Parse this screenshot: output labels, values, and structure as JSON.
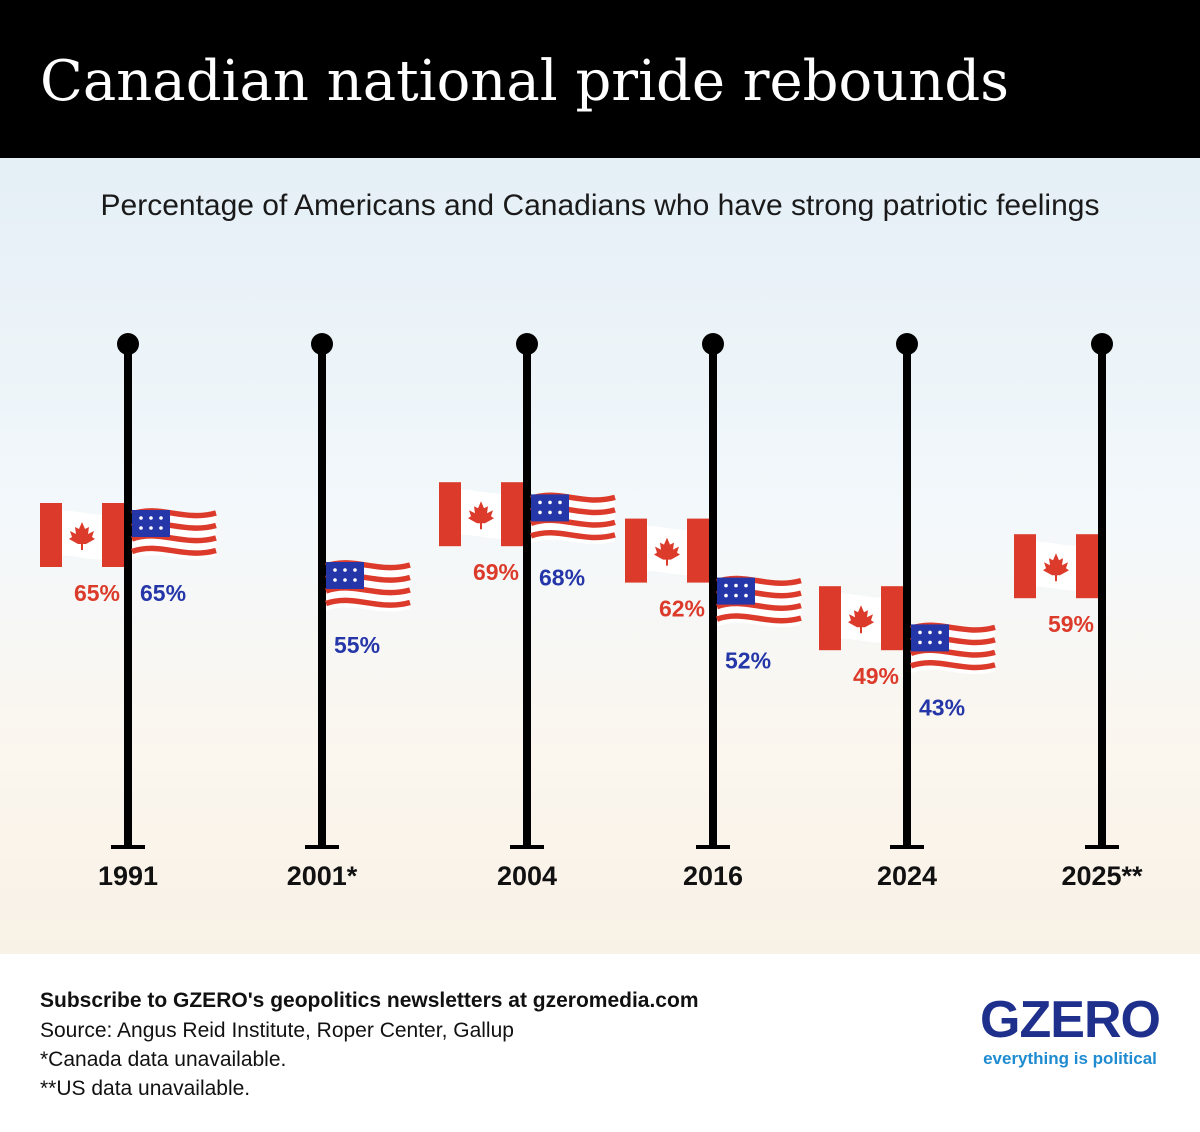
{
  "header": {
    "title": "Canadian national pride rebounds"
  },
  "subtitle": "Percentage of Americans and Canadians who have strong patriotic feelings",
  "colors": {
    "canada": "#dc3b2b",
    "us_red": "#dc3b2b",
    "us_blue": "#2536a8",
    "pole": "#000000"
  },
  "icons": {
    "canada_flag": "canada-flag-icon",
    "us_flag": "us-flag-icon",
    "pole_finial": "pole-finial-icon"
  },
  "chart_data": {
    "type": "scatter",
    "title": "Canadian national pride rebounds",
    "subtitle": "Percentage of Americans and Canadians who have strong patriotic feelings",
    "categories": [
      "1991",
      "2001*",
      "2004",
      "2016",
      "2024",
      "2025**"
    ],
    "series": [
      {
        "name": "Canadians",
        "values": [
          65,
          null,
          69,
          62,
          49,
          59
        ],
        "labels": [
          "65%",
          "",
          "69%",
          "62%",
          "49%",
          "59%"
        ]
      },
      {
        "name": "Americans",
        "values": [
          65,
          55,
          68,
          52,
          43,
          null
        ],
        "labels": [
          "65%",
          "55%",
          "68%",
          "52%",
          "43%",
          ""
        ]
      }
    ],
    "unit": "%"
  },
  "footer": {
    "cta": "Subscribe to GZERO's geopolitics newsletters at gzeromedia.com",
    "source": "Source: Angus Reid Institute, Roper Center, Gallup",
    "note1": "*Canada data unavailable.",
    "note2": "**US data unavailable."
  },
  "logo": {
    "word": "GZERO",
    "tagline": "everything is political"
  }
}
